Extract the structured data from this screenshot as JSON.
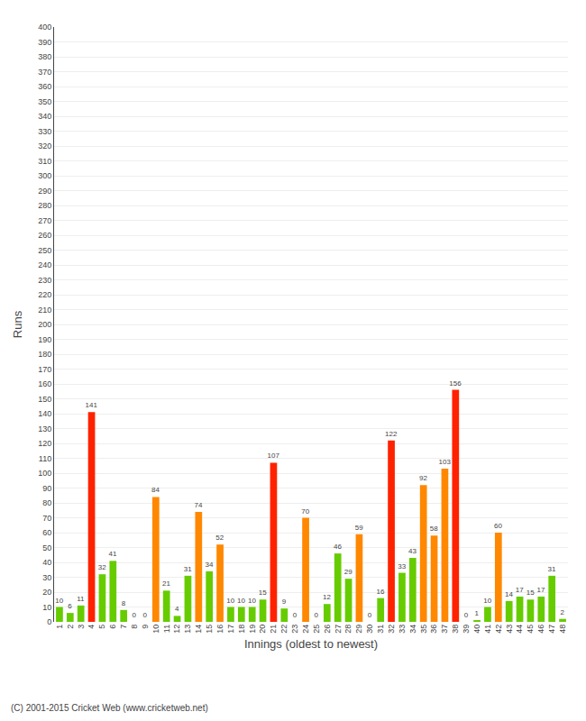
{
  "chart_data": {
    "type": "bar",
    "categories": [
      "1",
      "2",
      "3",
      "4",
      "5",
      "6",
      "7",
      "8",
      "9",
      "10",
      "11",
      "12",
      "13",
      "14",
      "15",
      "16",
      "17",
      "18",
      "19",
      "20",
      "21",
      "22",
      "23",
      "24",
      "25",
      "26",
      "27",
      "28",
      "29",
      "30",
      "31",
      "32",
      "33",
      "34",
      "35",
      "36",
      "37",
      "38",
      "39",
      "40",
      "41",
      "42",
      "43",
      "44",
      "45",
      "46",
      "47",
      "48"
    ],
    "values": [
      10,
      6,
      11,
      141,
      32,
      41,
      8,
      0,
      0,
      84,
      21,
      4,
      31,
      74,
      34,
      52,
      10,
      10,
      10,
      15,
      107,
      9,
      0,
      70,
      0,
      12,
      46,
      29,
      59,
      0,
      16,
      122,
      33,
      43,
      92,
      58,
      103,
      156,
      0,
      1,
      10,
      60,
      14,
      17,
      15,
      17,
      31,
      2
    ],
    "colors": [
      "#66cc00",
      "#66cc00",
      "#66cc00",
      "#ff2200",
      "#66cc00",
      "#66cc00",
      "#66cc00",
      "#66cc00",
      "#66cc00",
      "#ff8800",
      "#66cc00",
      "#66cc00",
      "#66cc00",
      "#ff8800",
      "#66cc00",
      "#ff8800",
      "#66cc00",
      "#66cc00",
      "#66cc00",
      "#66cc00",
      "#ff2200",
      "#66cc00",
      "#66cc00",
      "#ff8800",
      "#66cc00",
      "#66cc00",
      "#66cc00",
      "#66cc00",
      "#ff8800",
      "#66cc00",
      "#66cc00",
      "#ff2200",
      "#66cc00",
      "#66cc00",
      "#ff8800",
      "#ff8800",
      "#ff8800",
      "#ff2200",
      "#66cc00",
      "#66cc00",
      "#66cc00",
      "#ff8800",
      "#66cc00",
      "#66cc00",
      "#66cc00",
      "#66cc00",
      "#66cc00",
      "#66cc00"
    ],
    "xlabel": "Innings (oldest to newest)",
    "ylabel": "Runs",
    "ylim": [
      0,
      400
    ],
    "yticks": [
      0,
      10,
      20,
      30,
      40,
      50,
      60,
      70,
      80,
      90,
      100,
      110,
      120,
      130,
      140,
      150,
      160,
      170,
      180,
      190,
      200,
      210,
      220,
      230,
      240,
      250,
      260,
      270,
      280,
      290,
      300,
      310,
      320,
      330,
      340,
      350,
      360,
      370,
      380,
      390,
      400
    ],
    "grid": true,
    "data_labels": true,
    "annotations": [
      "(C) 2001-2015 Cricket Web (www.cricketweb.net)"
    ]
  }
}
